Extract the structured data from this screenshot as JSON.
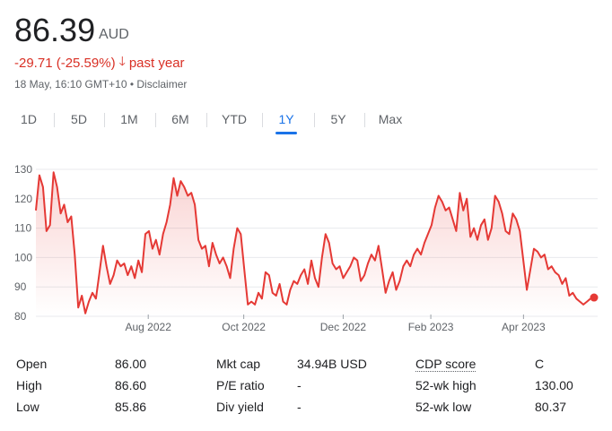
{
  "quote": {
    "price": "86.39",
    "currency": "AUD",
    "change": "-29.71 (-25.59%)",
    "change_arrow": "🡓",
    "change_period": "past year",
    "timestamp": "18 May, 16:10 GMT+10 • Disclaimer"
  },
  "tabs": [
    "1D",
    "5D",
    "1M",
    "6M",
    "YTD",
    "1Y",
    "5Y",
    "Max"
  ],
  "active_tab": "1Y",
  "colors": {
    "line": "#e53935",
    "negative": "#d93025",
    "active_tab": "#1a73e8"
  },
  "chart_data": {
    "type": "line",
    "title": "",
    "xlabel": "",
    "ylabel": "",
    "ylim": [
      80,
      130
    ],
    "y_ticks": [
      "130",
      "120",
      "110",
      "100",
      "90",
      "80"
    ],
    "x_ticks": [
      "Aug 2022",
      "Oct 2022",
      "Dec 2022",
      "Feb 2023",
      "Apr 2023"
    ],
    "grid": true,
    "series": [
      {
        "values": [
          116,
          128,
          124,
          109,
          111,
          129,
          124,
          115,
          118,
          112,
          114,
          101,
          83,
          87,
          81,
          85,
          88,
          86,
          95,
          104,
          97,
          91,
          94,
          99,
          97,
          98,
          94,
          97,
          93,
          99,
          95,
          108,
          109,
          103,
          106,
          101,
          108,
          112,
          118,
          127,
          121,
          126,
          124,
          121,
          122,
          118,
          106,
          103,
          104,
          97,
          105,
          101,
          98,
          100,
          97,
          93,
          103,
          110,
          108,
          96,
          84,
          85,
          84,
          88,
          86,
          95,
          94,
          88,
          87,
          91,
          85,
          84,
          89,
          92,
          91,
          94,
          96,
          91,
          99,
          93,
          90,
          100,
          108,
          105,
          98,
          96,
          97,
          93,
          95,
          97,
          100,
          99,
          92,
          94,
          98,
          101,
          99,
          104,
          96,
          88,
          92,
          95,
          89,
          92,
          97,
          99,
          97,
          101,
          103,
          101,
          105,
          108,
          111,
          117,
          121,
          119,
          116,
          117,
          113,
          109,
          122,
          116,
          120,
          107,
          110,
          106,
          111,
          113,
          106,
          110,
          121,
          119,
          115,
          109,
          108,
          115,
          113,
          109,
          99,
          89,
          96,
          103,
          102,
          100,
          101,
          96,
          97,
          95,
          94,
          91,
          93,
          87,
          88,
          86,
          85,
          84,
          85,
          86
        ]
      }
    ],
    "last_value": 86.39
  },
  "stats": {
    "col1": [
      {
        "label": "Open",
        "value": "86.00"
      },
      {
        "label": "High",
        "value": "86.60"
      },
      {
        "label": "Low",
        "value": "85.86"
      }
    ],
    "col2": [
      {
        "label": "Mkt cap",
        "value": "34.94B USD"
      },
      {
        "label": "P/E ratio",
        "value": "-"
      },
      {
        "label": "Div yield",
        "value": "-"
      }
    ],
    "col3": [
      {
        "label": "CDP score",
        "value": "C"
      },
      {
        "label": "52-wk high",
        "value": "130.00"
      },
      {
        "label": "52-wk low",
        "value": "80.37"
      }
    ]
  }
}
